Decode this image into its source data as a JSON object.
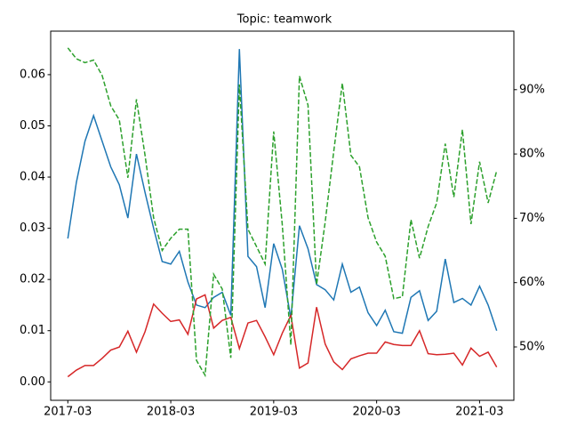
{
  "chart_data": {
    "type": "line",
    "title": "Topic: teamwork",
    "x": [
      "2017-03",
      "2017-04",
      "2017-05",
      "2017-06",
      "2017-07",
      "2017-08",
      "2017-09",
      "2017-10",
      "2017-11",
      "2017-12",
      "2018-01",
      "2018-02",
      "2018-03",
      "2018-04",
      "2018-05",
      "2018-06",
      "2018-07",
      "2018-08",
      "2018-09",
      "2018-10",
      "2018-11",
      "2018-12",
      "2019-01",
      "2019-02",
      "2019-03",
      "2019-04",
      "2019-05",
      "2019-06",
      "2019-07",
      "2019-08",
      "2019-09",
      "2019-10",
      "2019-11",
      "2019-12",
      "2020-01",
      "2020-02",
      "2020-03",
      "2020-04",
      "2020-05",
      "2020-06",
      "2020-07",
      "2020-08",
      "2020-09",
      "2020-10",
      "2020-11",
      "2020-12",
      "2021-01",
      "2021-02",
      "2021-03",
      "2021-04",
      "2021-05"
    ],
    "series": [
      {
        "color": "#1f77b4",
        "values": [
          0.028,
          0.039,
          0.047,
          0.052,
          0.047,
          0.042,
          0.0385,
          0.032,
          0.0445,
          0.037,
          0.03,
          0.0235,
          0.023,
          0.0255,
          0.0195,
          0.015,
          0.0145,
          0.0165,
          0.0175,
          0.013,
          0.065,
          0.0245,
          0.0225,
          0.0145,
          0.027,
          0.022,
          0.0125,
          0.0305,
          0.026,
          0.019,
          0.018,
          0.016,
          0.023,
          0.0175,
          0.0185,
          0.0135,
          0.011,
          0.014,
          0.0098,
          0.0095,
          0.0165,
          0.0178,
          0.012,
          0.0138,
          0.024,
          0.0155,
          0.0163,
          0.015,
          0.0187,
          0.015,
          0.01
        ]
      },
      {
        "color": "#d62728",
        "values": [
          0.001,
          0.0023,
          0.0032,
          0.0032,
          0.0046,
          0.0062,
          0.0068,
          0.0099,
          0.0058,
          0.0098,
          0.0152,
          0.0134,
          0.0118,
          0.0121,
          0.0093,
          0.0162,
          0.017,
          0.0105,
          0.012,
          0.0126,
          0.0065,
          0.0115,
          0.012,
          0.0088,
          0.0053,
          0.0095,
          0.013,
          0.0027,
          0.0037,
          0.0146,
          0.0074,
          0.0039,
          0.0024,
          0.0045,
          0.0051,
          0.0056,
          0.0056,
          0.0078,
          0.0073,
          0.0071,
          0.0071,
          0.01,
          0.0055,
          0.0053,
          0.0054,
          0.0056,
          0.0033,
          0.0066,
          0.005,
          0.0058,
          0.0029
        ]
      },
      {
        "color": "#2ca02c",
        "dashed": true,
        "axis": "y2",
        "values": [
          96.5,
          94.8,
          94.2,
          94.6,
          92.2,
          87.5,
          85.3,
          76.3,
          88.5,
          79.8,
          70.1,
          65,
          66.9,
          68.3,
          68.3,
          47.9,
          45.6,
          61.3,
          59,
          48.3,
          90.8,
          68.3,
          65.6,
          62.9,
          83.5,
          69,
          50.3,
          92.1,
          87.6,
          59.7,
          69.4,
          80.4,
          91,
          79.8,
          78,
          70.1,
          66.3,
          64.1,
          57.5,
          57.8,
          69.8,
          63.8,
          68.7,
          72.4,
          81.6,
          73.3,
          83.8,
          69.1,
          78.8,
          72.4,
          77.4
        ]
      }
    ],
    "xlim": [
      "2017-01",
      "2021-07"
    ],
    "xticks": [
      "2017-03",
      "2018-03",
      "2019-03",
      "2020-03",
      "2021-03"
    ],
    "ylim": [
      -0.0036,
      0.0685
    ],
    "yticks": [
      {
        "value": 0,
        "label": "0.00"
      },
      {
        "value": 0.01,
        "label": "0.01"
      },
      {
        "value": 0.02,
        "label": "0.02"
      },
      {
        "value": 0.03,
        "label": "0.03"
      },
      {
        "value": 0.04,
        "label": "0.04"
      },
      {
        "value": 0.05,
        "label": "0.05"
      },
      {
        "value": 0.06,
        "label": "0.06"
      }
    ],
    "y2lim": [
      41.7,
      99.1
    ],
    "y2ticks": [
      {
        "value": 50,
        "label": "50%"
      },
      {
        "value": 60,
        "label": "60%"
      },
      {
        "value": 70,
        "label": "70%"
      },
      {
        "value": 80,
        "label": "80%"
      },
      {
        "value": 90,
        "label": "90%"
      }
    ]
  }
}
